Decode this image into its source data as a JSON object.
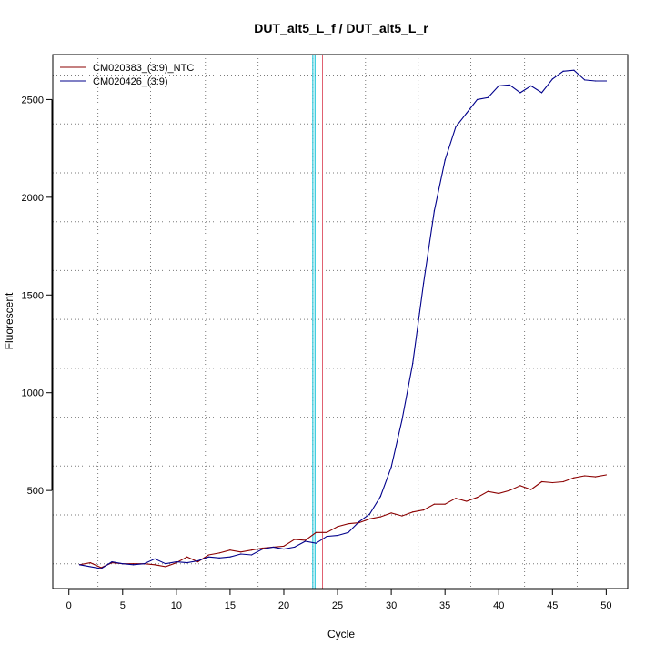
{
  "chart_data": {
    "type": "line",
    "title": "DUT_alt5_L_f / DUT_alt5_L_r",
    "xlabel": "Cycle",
    "ylabel": "Fluorescent",
    "xlim": [
      -1.5,
      52
    ],
    "ylim": [
      -2,
      2730
    ],
    "xticks": [
      0,
      5,
      10,
      15,
      20,
      25,
      30,
      35,
      40,
      45,
      50
    ],
    "yticks": [
      500,
      1000,
      1500,
      2000,
      2500
    ],
    "vgrid": [
      2.7,
      7.6,
      12.7,
      17.6,
      22.7,
      27.6,
      32.5,
      37.4,
      42.4,
      47.3
    ],
    "hgrid": [
      125,
      375,
      625,
      875,
      1125,
      1375,
      1625,
      1875,
      2125,
      2375,
      2625
    ],
    "grid": true,
    "legend_position": "top-left",
    "thresholds": [
      {
        "x": 22.7,
        "color": "#00bcd4"
      },
      {
        "x": 22.9,
        "color": "#00bcd4"
      },
      {
        "x": 23.6,
        "color": "#e06070"
      }
    ],
    "series": [
      {
        "name": "CM020383_(3:9)_NTC",
        "color": "#8b0000",
        "x": [
          1,
          2,
          3,
          4,
          5,
          6,
          7,
          8,
          9,
          10,
          11,
          12,
          13,
          14,
          15,
          16,
          17,
          18,
          19,
          20,
          21,
          22,
          23,
          24,
          25,
          26,
          27,
          28,
          29,
          30,
          31,
          32,
          33,
          34,
          35,
          36,
          37,
          38,
          39,
          40,
          41,
          42,
          43,
          44,
          45,
          46,
          47,
          48,
          49,
          50
        ],
        "y": [
          120,
          130,
          105,
          130,
          125,
          125,
          125,
          120,
          110,
          130,
          160,
          135,
          170,
          180,
          195,
          185,
          195,
          205,
          210,
          215,
          250,
          245,
          285,
          285,
          315,
          330,
          335,
          355,
          365,
          385,
          370,
          390,
          400,
          430,
          430,
          460,
          445,
          465,
          495,
          485,
          500,
          525,
          505,
          545,
          540,
          545,
          565,
          575,
          570,
          580
        ]
      },
      {
        "name": "CM020426_(3:9)",
        "color": "#00008b",
        "x": [
          1,
          2,
          3,
          4,
          5,
          6,
          7,
          8,
          9,
          10,
          11,
          12,
          13,
          14,
          15,
          16,
          17,
          18,
          19,
          20,
          21,
          22,
          23,
          24,
          25,
          26,
          27,
          28,
          29,
          30,
          31,
          32,
          33,
          34,
          35,
          36,
          37,
          38,
          39,
          40,
          41,
          42,
          43,
          44,
          45,
          46,
          47,
          48,
          49,
          50
        ],
        "y": [
          120,
          110,
          100,
          135,
          125,
          120,
          125,
          150,
          125,
          135,
          130,
          140,
          160,
          155,
          160,
          175,
          170,
          200,
          210,
          200,
          210,
          240,
          230,
          265,
          270,
          285,
          340,
          380,
          470,
          620,
          860,
          1150,
          1560,
          1930,
          2190,
          2360,
          2430,
          2500,
          2510,
          2570,
          2575,
          2535,
          2570,
          2535,
          2605,
          2645,
          2650,
          2600,
          2595,
          2595
        ]
      }
    ]
  }
}
